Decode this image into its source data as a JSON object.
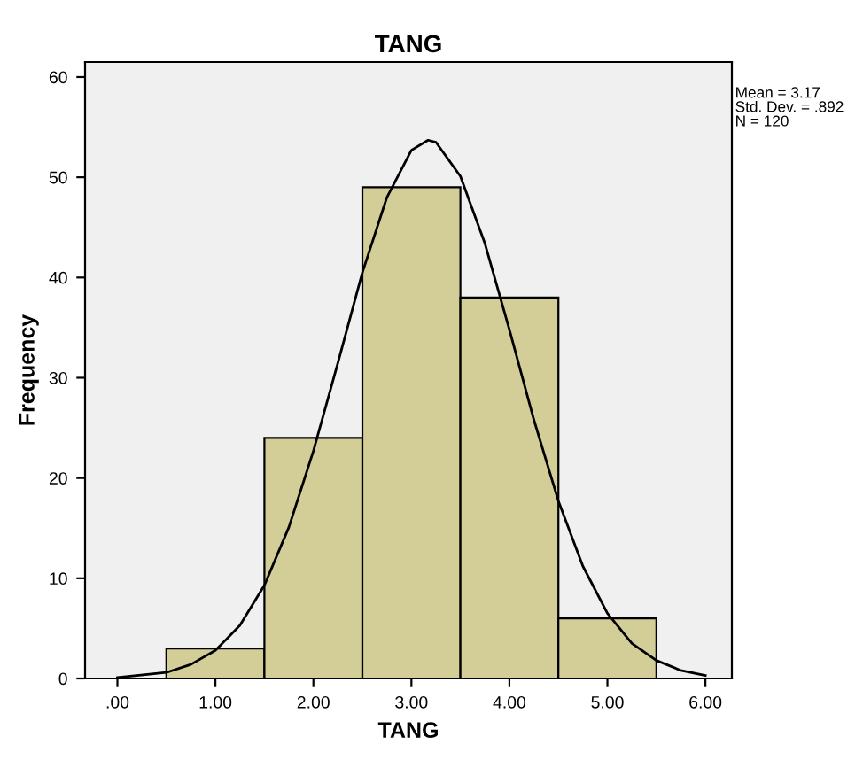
{
  "chart_data": {
    "type": "histogram",
    "title": "TANG",
    "xlabel": "TANG",
    "ylabel": "Frequency",
    "series": [
      {
        "bins": [
          0.5,
          1.5,
          2.5,
          3.5,
          4.5,
          5.5
        ],
        "values": [
          3,
          24,
          49,
          38,
          6
        ],
        "color": "#d3ce97"
      },
      {
        "type": "line",
        "x": [
          0.0,
          0.5,
          0.75,
          1.0,
          1.25,
          1.5,
          1.75,
          2.0,
          2.25,
          2.5,
          2.75,
          3.0,
          3.17,
          3.25,
          3.5,
          3.75,
          4.0,
          4.25,
          4.5,
          4.75,
          5.0,
          5.25,
          5.5,
          5.75,
          6.0
        ],
        "values": [
          0.1,
          0.6,
          1.4,
          2.8,
          5.3,
          9.3,
          15.1,
          22.7,
          31.5,
          40.5,
          48.0,
          52.7,
          53.7,
          53.5,
          50.1,
          43.4,
          34.8,
          25.8,
          17.7,
          11.2,
          6.5,
          3.5,
          1.8,
          0.8,
          0.3
        ],
        "color": "#000000"
      }
    ],
    "xlim": [
      -0.33,
      6.27
    ],
    "ylim": [
      0,
      61.5
    ],
    "xticks": [
      {
        "value": 0,
        "label": ".00"
      },
      {
        "value": 1,
        "label": "1.00"
      },
      {
        "value": 2,
        "label": "2.00"
      },
      {
        "value": 3,
        "label": "3.00"
      },
      {
        "value": 4,
        "label": "4.00"
      },
      {
        "value": 5,
        "label": "5.00"
      },
      {
        "value": 6,
        "label": "6.00"
      }
    ],
    "yticks": [
      0,
      10,
      20,
      30,
      40,
      50,
      60
    ],
    "annotations": [
      "Mean = 3.17",
      "Std. Dev. = .892",
      "N = 120"
    ],
    "grid": false,
    "legend": false
  }
}
